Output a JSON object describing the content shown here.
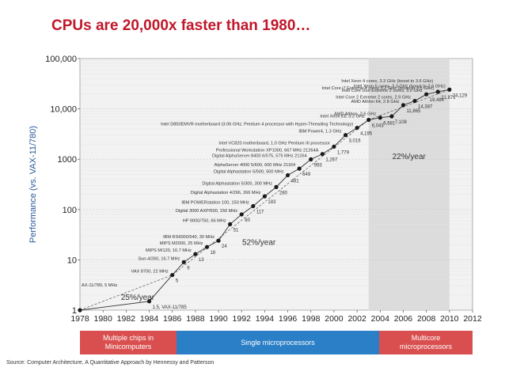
{
  "slide": {
    "title": "CPUs are 20,000x faster than 1980…",
    "source": "Source: Computer Architecture, A Quantitative Approach by Hennessy and Patterson"
  },
  "bands": [
    {
      "label_line1": "Multiple chips in",
      "label_line2": "Minicomputers",
      "x_start": 1978,
      "x_end": 1986,
      "color": "#d94f4f"
    },
    {
      "label_line1": "Single microprocessors",
      "label_line2": "",
      "x_start": 1986,
      "x_end": 2003,
      "color": "#2a7fc6"
    },
    {
      "label_line1": "Multicore",
      "label_line2": "microprocessors",
      "x_start": 2003,
      "x_end": 2012,
      "color": "#d94f4f"
    }
  ],
  "colors": {
    "title": "#c0172b",
    "plot_bg": "#f2f2f2",
    "shaded_region": "#dcdcdc",
    "marker": "#1a1a1a"
  },
  "chart_data": {
    "type": "scatter",
    "title": "",
    "xlabel": "",
    "ylabel": "Performance (vs. VAX-11/780)",
    "y_scale": "log",
    "xlim": [
      1978,
      2012
    ],
    "ylim": [
      1,
      100000
    ],
    "x_ticks": [
      "1978",
      "1980",
      "1982",
      "1984",
      "1986",
      "1988",
      "1990",
      "1992",
      "1994",
      "1996",
      "1998",
      "2000",
      "2002",
      "2004",
      "2006",
      "2008",
      "2010",
      "2012"
    ],
    "y_ticks": [
      "1",
      "10",
      "100",
      "1000",
      "10,000",
      "100,000"
    ],
    "grid": true,
    "shaded_region_x": [
      2003,
      2010
    ],
    "growth_labels": [
      {
        "text": "25%/year",
        "x": 1983.0,
        "y": 1.6
      },
      {
        "text": "52%/year",
        "x": 1993.5,
        "y": 20
      },
      {
        "text": "22%/year",
        "x": 2006.5,
        "y": 1000
      }
    ],
    "series": [
      {
        "points": [
          {
            "x": 1978,
            "y": 1,
            "label": "AX-11/780, 5 MHz",
            "value_label": ""
          },
          {
            "x": 1984,
            "y": 1.5,
            "label": "",
            "value_label": "1.5, VAX-11/785"
          },
          {
            "x": 1986,
            "y": 5,
            "label": "VAX 8700, 22 MHz",
            "value_label": "5"
          },
          {
            "x": 1987,
            "y": 9,
            "label": "Sun-4/260, 16.7 MHz",
            "value_label": "9"
          },
          {
            "x": 1988,
            "y": 13,
            "label": "MIPS M/120, 16.7 MHz",
            "value_label": "13"
          },
          {
            "x": 1989,
            "y": 18,
            "label": "MIPS M2000, 25 MHz",
            "value_label": "18"
          },
          {
            "x": 1990,
            "y": 24,
            "label": "IBM RS6000/540, 30 MHz",
            "value_label": "24"
          },
          {
            "x": 1991,
            "y": 51,
            "label": "HP 9000/750, 66 MHz",
            "value_label": "51"
          },
          {
            "x": 1992,
            "y": 80,
            "label": "Digital 3000 AXP/500, 150 MHz",
            "value_label": "80"
          },
          {
            "x": 1993,
            "y": 117,
            "label": "IBM POWERstation 100, 150 MHz",
            "value_label": "117"
          },
          {
            "x": 1994,
            "y": 183,
            "label": "Digital Alphastation 4/266, 266 MHz",
            "value_label": "183"
          },
          {
            "x": 1995,
            "y": 280,
            "label": "Digital Alphastation 5/300, 300 MHz",
            "value_label": "280"
          },
          {
            "x": 1996,
            "y": 481,
            "label": "Digital Alphastation 5/500, 500 MHz",
            "value_label": "481"
          },
          {
            "x": 1997,
            "y": 649,
            "label": "AlphaServer 4000 5/600, 600 MHz 21164",
            "value_label": "649"
          },
          {
            "x": 1998,
            "y": 993,
            "label": "Digital AlphaServer 8400 6/575, 575 MHz 21264",
            "value_label": "993"
          },
          {
            "x": 1999,
            "y": 1267,
            "label": "Professional Workstation XP1000, 667 MHz 21264A",
            "value_label": "1,267"
          },
          {
            "x": 2000,
            "y": 1779,
            "label": "Intel VC820 motherboard, 1.0 GHz Pentium III processor",
            "value_label": "1,779"
          },
          {
            "x": 2001,
            "y": 3016,
            "label": "IBM Power4, 1.3 GHz",
            "value_label": "3,016"
          },
          {
            "x": 2002,
            "y": 4195,
            "label": "Intel D850EMVR motherboard (3.06 GHz, Pentium 4 processor with Hyper-Threading Technology)",
            "value_label": "4,195"
          },
          {
            "x": 2003,
            "y": 6043,
            "label": "Intel Xeon EE 3.2 GHz",
            "value_label": "6,043"
          },
          {
            "x": 2004,
            "y": 6681,
            "label": "AMD Athlon, 2.6 GHz",
            "value_label": "6,681"
          },
          {
            "x": 2005,
            "y": 7108,
            "label": "",
            "value_label": "7,108"
          },
          {
            "x": 2006,
            "y": 11865,
            "label": "AMD Athlon 64, 2.8 GHz",
            "value_label": "11,865"
          },
          {
            "x": 2007,
            "y": 14387,
            "label": "Intel Core 2 Extreme 2 cores, 2.9 GHz",
            "value_label": "14,387"
          },
          {
            "x": 2008,
            "y": 19484,
            "label": "Intel Core Duo Extreme 2 cores, 3.0 GHz",
            "value_label": "19,484"
          },
          {
            "x": 2009,
            "y": 21871,
            "label": "Intel Core i7 Extreme 4 cores 3.2 GHz (boost to 3.5 GHz)",
            "value_label": "21,871"
          },
          {
            "x": 2010,
            "y": 24129,
            "label": "Intel Xeon 6 cores, 3.3 GHz (boost to 3.6 GHz)",
            "value_label": "24,129"
          }
        ]
      }
    ],
    "extra_labels": [
      "Intel Xeon 4 cores, 3.3 GHz (boost to 3.6 GHz)"
    ]
  }
}
